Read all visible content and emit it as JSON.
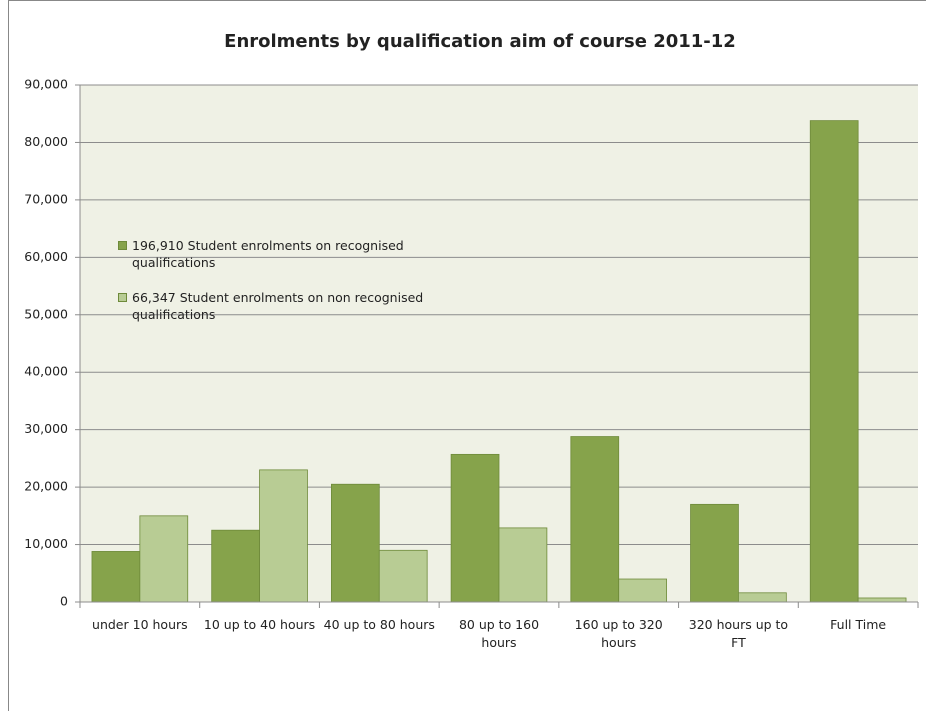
{
  "chart_data": {
    "type": "bar",
    "title": "Enrolments by qualification aim of course 2011-12",
    "categories": [
      "under 10 hours",
      "10 up to 40 hours",
      "40 up to 80 hours",
      "80 up to 160 hours",
      "160 up to 320 hours",
      "320 hours up to FT",
      "Full Time"
    ],
    "series": [
      {
        "name": "196,910 Student enrolments on recognised qualifications",
        "color": "#86a34b",
        "values": [
          8800,
          12500,
          20500,
          25700,
          28800,
          17000,
          83800
        ]
      },
      {
        "name": "66,347 Student enrolments on non recognised qualifications",
        "color": "#b8cc94",
        "values": [
          15000,
          23000,
          9000,
          12900,
          4000,
          1600,
          700
        ]
      }
    ],
    "ylim": [
      0,
      90000
    ],
    "yticks": [
      0,
      {
        "value": 10000,
        "label": "10,000"
      },
      {
        "value": 20000,
        "label": "20,000"
      },
      {
        "value": 30000,
        "label": "30,000"
      },
      {
        "value": 40000,
        "label": "40,000"
      },
      {
        "value": 50000,
        "label": "50,000"
      },
      {
        "value": 60000,
        "label": "60,000"
      },
      {
        "value": 70000,
        "label": "70,000"
      },
      {
        "value": 80000,
        "label": "80,000"
      },
      {
        "value": 90000,
        "label": "90,000"
      }
    ],
    "grid": true
  }
}
